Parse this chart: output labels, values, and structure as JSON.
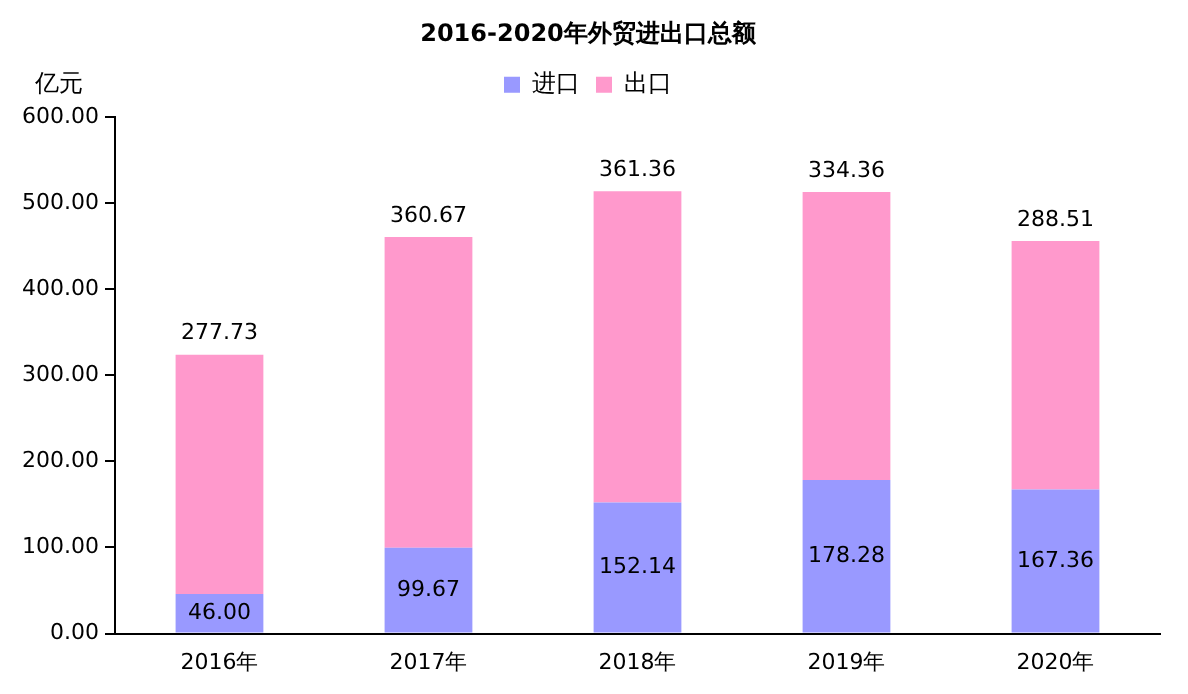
{
  "chart_data": {
    "type": "bar",
    "title": "2016-2020年外贸进出口总额",
    "ylabel": "亿元",
    "categories": [
      "2016年",
      "2017年",
      "2018年",
      "2019年",
      "2020年"
    ],
    "series": [
      {
        "name": "进口",
        "color": "#9999ff",
        "values": [
          46.0,
          99.67,
          152.14,
          178.28,
          167.36
        ],
        "value_labels": [
          "46.00",
          "99.67",
          "152.14",
          "178.28",
          "167.36"
        ]
      },
      {
        "name": "出口",
        "color": "#ff99cc",
        "values": [
          277.73,
          360.67,
          361.36,
          334.36,
          288.51
        ],
        "value_labels": [
          "277.73",
          "360.67",
          "361.36",
          "334.36",
          "288.51"
        ]
      }
    ],
    "stacked": true,
    "legend": "top",
    "grid": false,
    "ylim": [
      0,
      600
    ],
    "yticks": [
      {
        "value": 0,
        "label": "0.00"
      },
      {
        "value": 100,
        "label": "100.00"
      },
      {
        "value": 200,
        "label": "200.00"
      },
      {
        "value": 300,
        "label": "300.00"
      },
      {
        "value": 400,
        "label": "400.00"
      },
      {
        "value": 500,
        "label": "500.00"
      },
      {
        "value": 600,
        "label": "600.00"
      }
    ]
  }
}
